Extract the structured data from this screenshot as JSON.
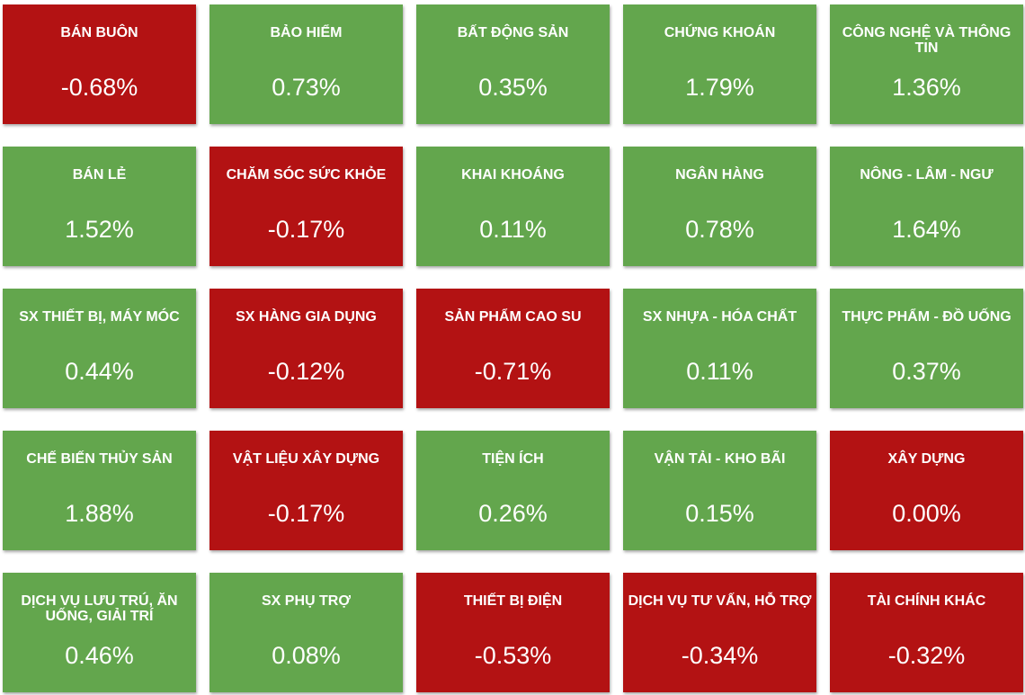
{
  "colors": {
    "positive": "#63a64d",
    "negative": "#b31213",
    "text": "#ffffff"
  },
  "sectors": [
    {
      "name": "BÁN BUÔN",
      "change": "-0.68%",
      "trend": "down"
    },
    {
      "name": "BẢO HIỂM",
      "change": "0.73%",
      "trend": "up"
    },
    {
      "name": "BẤT ĐỘNG SẢN",
      "change": "0.35%",
      "trend": "up"
    },
    {
      "name": "CHỨNG KHOÁN",
      "change": "1.79%",
      "trend": "up"
    },
    {
      "name": "CÔNG NGHỆ VÀ THÔNG TIN",
      "change": "1.36%",
      "trend": "up"
    },
    {
      "name": "BÁN LẺ",
      "change": "1.52%",
      "trend": "up"
    },
    {
      "name": "CHĂM SÓC SỨC KHỎE",
      "change": "-0.17%",
      "trend": "down"
    },
    {
      "name": "KHAI KHOÁNG",
      "change": "0.11%",
      "trend": "up"
    },
    {
      "name": "NGÂN HÀNG",
      "change": "0.78%",
      "trend": "up"
    },
    {
      "name": "NÔNG - LÂM - NGƯ",
      "change": "1.64%",
      "trend": "up"
    },
    {
      "name": "SX THIẾT BỊ, MÁY MÓC",
      "change": "0.44%",
      "trend": "up"
    },
    {
      "name": "SX HÀNG GIA DỤNG",
      "change": "-0.12%",
      "trend": "down"
    },
    {
      "name": "SẢN PHẨM CAO SU",
      "change": "-0.71%",
      "trend": "down"
    },
    {
      "name": "SX NHỰA - HÓA CHẤT",
      "change": "0.11%",
      "trend": "up"
    },
    {
      "name": "THỰC PHẨM - ĐỒ UỐNG",
      "change": "0.37%",
      "trend": "up"
    },
    {
      "name": "CHẾ BIẾN THỦY SẢN",
      "change": "1.88%",
      "trend": "up"
    },
    {
      "name": "VẬT LIỆU XÂY DỰNG",
      "change": "-0.17%",
      "trend": "down"
    },
    {
      "name": "TIỆN ÍCH",
      "change": "0.26%",
      "trend": "up"
    },
    {
      "name": "VẬN TẢI - KHO BÃI",
      "change": "0.15%",
      "trend": "up"
    },
    {
      "name": "XÂY DỰNG",
      "change": "0.00%",
      "trend": "down"
    },
    {
      "name": "DỊCH VỤ LƯU TRÚ, ĂN UỐNG, GIẢI TRÍ",
      "change": "0.46%",
      "trend": "up"
    },
    {
      "name": "SX PHỤ TRỢ",
      "change": "0.08%",
      "trend": "up"
    },
    {
      "name": "THIẾT BỊ ĐIỆN",
      "change": "-0.53%",
      "trend": "down"
    },
    {
      "name": "DỊCH VỤ TƯ VẤN, HỖ TRỢ",
      "change": "-0.34%",
      "trend": "down"
    },
    {
      "name": "TÀI CHÍNH KHÁC",
      "change": "-0.32%",
      "trend": "down"
    }
  ]
}
